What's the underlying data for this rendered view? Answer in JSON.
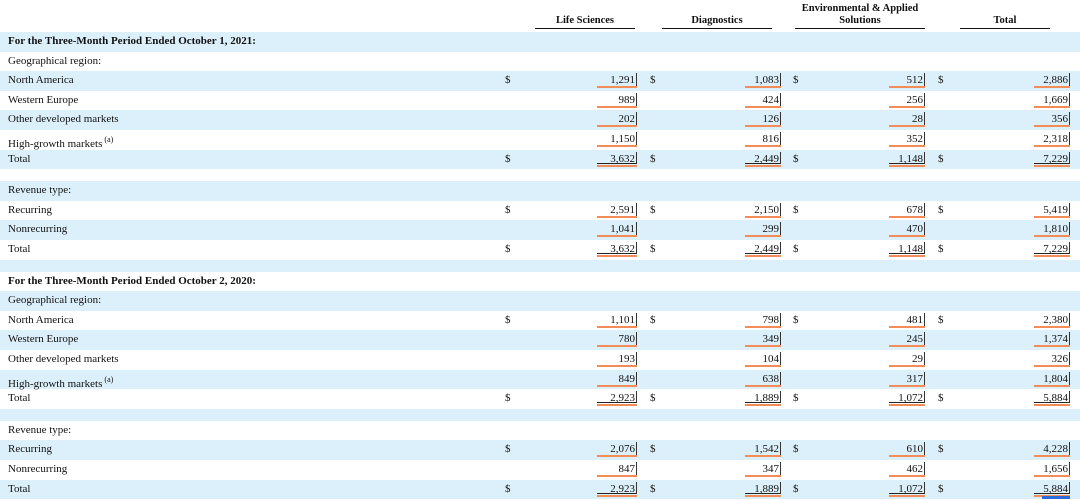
{
  "header": {
    "col1": "Life Sciences",
    "col2": "Diagnostics",
    "col3_line1": "Environmental & Applied",
    "col3_line2": "Solutions",
    "col4": "Total"
  },
  "sections": [
    {
      "title": "For the Three-Month Period Ended October 1, 2021:",
      "groups": [
        {
          "label": "Geographical region:",
          "rows": [
            {
              "label": "North America",
              "note": "",
              "dollar": true,
              "values": [
                "1,291",
                "1,083",
                "512",
                "2,886"
              ]
            },
            {
              "label": "Western Europe",
              "note": "",
              "dollar": false,
              "values": [
                "989",
                "424",
                "256",
                "1,669"
              ]
            },
            {
              "label": "Other developed markets",
              "note": "",
              "dollar": false,
              "values": [
                "202",
                "126",
                "28",
                "356"
              ]
            },
            {
              "label": "High-growth markets",
              "note": "(a)",
              "dollar": false,
              "values": [
                "1,150",
                "816",
                "352",
                "2,318"
              ]
            },
            {
              "label": "Total",
              "note": "",
              "dollar": true,
              "values": [
                "3,632",
                "2,449",
                "1,148",
                "7,229"
              ],
              "total": true
            }
          ]
        },
        {
          "label": "Revenue type:",
          "rows": [
            {
              "label": "Recurring",
              "note": "",
              "dollar": true,
              "values": [
                "2,591",
                "2,150",
                "678",
                "5,419"
              ]
            },
            {
              "label": "Nonrecurring",
              "note": "",
              "dollar": false,
              "values": [
                "1,041",
                "299",
                "470",
                "1,810"
              ]
            },
            {
              "label": "Total",
              "note": "",
              "dollar": true,
              "values": [
                "3,632",
                "2,449",
                "1,148",
                "7,229"
              ],
              "total": true
            }
          ]
        }
      ]
    },
    {
      "title": "For the Three-Month Period Ended October 2, 2020:",
      "groups": [
        {
          "label": "Geographical region:",
          "rows": [
            {
              "label": "North America",
              "note": "",
              "dollar": true,
              "values": [
                "1,101",
                "798",
                "481",
                "2,380"
              ]
            },
            {
              "label": "Western Europe",
              "note": "",
              "dollar": false,
              "values": [
                "780",
                "349",
                "245",
                "1,374"
              ]
            },
            {
              "label": "Other developed markets",
              "note": "",
              "dollar": false,
              "values": [
                "193",
                "104",
                "29",
                "326"
              ]
            },
            {
              "label": "High-growth markets",
              "note": "(a)",
              "dollar": false,
              "values": [
                "849",
                "638",
                "317",
                "1,804"
              ]
            },
            {
              "label": "Total",
              "note": "",
              "dollar": true,
              "values": [
                "2,923",
                "1,889",
                "1,072",
                "5,884"
              ],
              "total": true
            }
          ]
        },
        {
          "label": "Revenue type:",
          "rows": [
            {
              "label": "Recurring",
              "note": "",
              "dollar": true,
              "values": [
                "2,076",
                "1,542",
                "610",
                "4,228"
              ]
            },
            {
              "label": "Nonrecurring",
              "note": "",
              "dollar": false,
              "values": [
                "847",
                "347",
                "462",
                "1,656"
              ]
            },
            {
              "label": "Total",
              "note": "",
              "dollar": true,
              "values": [
                "2,923",
                "1,889",
                "1,072",
                "5,884"
              ],
              "total": true
            }
          ]
        }
      ]
    }
  ],
  "dollar_sign": "$",
  "colors": {
    "shade": "#dcf0fb",
    "highlight": "#f28c58",
    "accent": "#2b6cd9"
  }
}
